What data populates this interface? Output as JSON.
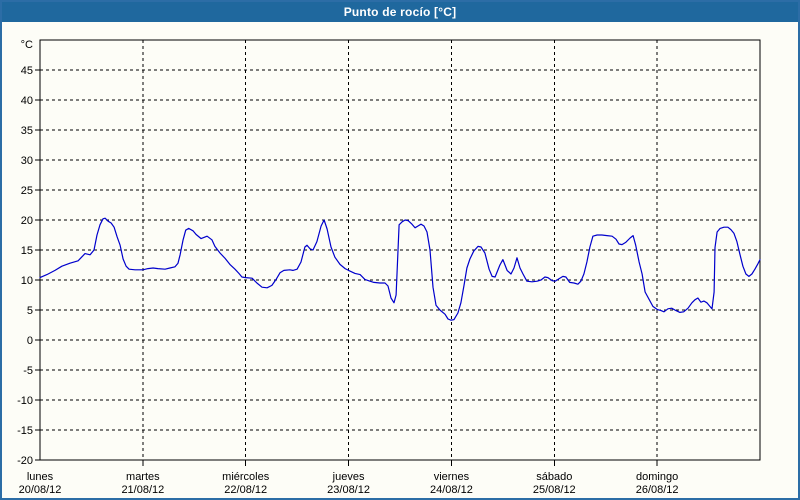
{
  "window": {
    "title": "Punto de rocío [°C]"
  },
  "colors": {
    "title_bar_bg": "#1f689e",
    "title_text": "#ffffff",
    "outer_border": "#2c6da6",
    "background": "#fdfdf7",
    "grid": "#000000",
    "line": "#0000cc"
  },
  "chart_data": {
    "type": "line",
    "title": "Punto de rocío [°C]",
    "ylabel": "°C",
    "ylim": [
      -20,
      50
    ],
    "yticks": [
      45,
      40,
      35,
      30,
      25,
      20,
      15,
      10,
      5,
      0,
      -5,
      -10,
      -15,
      -20
    ],
    "grid": true,
    "legend": "none",
    "xlim_hours": [
      0,
      168
    ],
    "hours_per_day": 24,
    "x_categories": [
      {
        "name": "lunes",
        "date": "20/08/12"
      },
      {
        "name": "martes",
        "date": "21/08/12"
      },
      {
        "name": "miércoles",
        "date": "22/08/12"
      },
      {
        "name": "jueves",
        "date": "23/08/12"
      },
      {
        "name": "viernes",
        "date": "24/08/12"
      },
      {
        "name": "sábado",
        "date": "25/08/12"
      },
      {
        "name": "domingo",
        "date": "26/08/12"
      }
    ],
    "series": [
      {
        "name": "Punto de rocío",
        "unit": "°C",
        "color": "#0000cc",
        "points_hours_values": [
          [
            0,
            10.4
          ],
          [
            1.6,
            10.9
          ],
          [
            3.5,
            11.6
          ],
          [
            5.1,
            12.3
          ],
          [
            7,
            12.8
          ],
          [
            8.9,
            13.2
          ],
          [
            10.5,
            14.4
          ],
          [
            11.7,
            14.2
          ],
          [
            12.6,
            15
          ],
          [
            13.3,
            17.5
          ],
          [
            14,
            19.2
          ],
          [
            14.7,
            20.2
          ],
          [
            15.2,
            20.3
          ],
          [
            15.9,
            19.8
          ],
          [
            16.6,
            19.5
          ],
          [
            17.3,
            18.8
          ],
          [
            18,
            17.2
          ],
          [
            18.7,
            15.8
          ],
          [
            19.4,
            13.5
          ],
          [
            20.1,
            12.3
          ],
          [
            20.8,
            11.8
          ],
          [
            22.2,
            11.7
          ],
          [
            24,
            11.7
          ],
          [
            25.2,
            11.9
          ],
          [
            26.4,
            12
          ],
          [
            27.5,
            11.9
          ],
          [
            29.2,
            11.8
          ],
          [
            30.3,
            12
          ],
          [
            31.5,
            12.2
          ],
          [
            32.2,
            12.8
          ],
          [
            32.7,
            14.2
          ],
          [
            33.4,
            16.7
          ],
          [
            34,
            18.3
          ],
          [
            34.7,
            18.6
          ],
          [
            35.7,
            18.2
          ],
          [
            36.4,
            17.6
          ],
          [
            37.6,
            16.9
          ],
          [
            39,
            17.3
          ],
          [
            40.1,
            16.7
          ],
          [
            40.8,
            15.6
          ],
          [
            42,
            14.5
          ],
          [
            43.2,
            13.6
          ],
          [
            44.3,
            12.6
          ],
          [
            45.5,
            11.8
          ],
          [
            46.4,
            11.1
          ],
          [
            47.1,
            10.5
          ],
          [
            48,
            10.4
          ],
          [
            49.5,
            10.3
          ],
          [
            50.6,
            9.5
          ],
          [
            51.8,
            8.8
          ],
          [
            53,
            8.7
          ],
          [
            54.1,
            9.1
          ],
          [
            55.1,
            10.1
          ],
          [
            56,
            11.2
          ],
          [
            56.9,
            11.6
          ],
          [
            58.3,
            11.7
          ],
          [
            59,
            11.6
          ],
          [
            60,
            11.8
          ],
          [
            60.9,
            13
          ],
          [
            61.8,
            15.5
          ],
          [
            62.3,
            15.8
          ],
          [
            63,
            15.2
          ],
          [
            63.7,
            15
          ],
          [
            64.6,
            16.4
          ],
          [
            65.6,
            19
          ],
          [
            66.3,
            20
          ],
          [
            67,
            18.5
          ],
          [
            67.9,
            15.5
          ],
          [
            68.8,
            13.8
          ],
          [
            70,
            12.6
          ],
          [
            71.2,
            11.9
          ],
          [
            72,
            11.6
          ],
          [
            73.5,
            11.1
          ],
          [
            74.7,
            10.9
          ],
          [
            75.8,
            10.1
          ],
          [
            77,
            9.8
          ],
          [
            77.9,
            9.6
          ],
          [
            79.3,
            9.5
          ],
          [
            80.5,
            9.5
          ],
          [
            81.2,
            9
          ],
          [
            81.9,
            7
          ],
          [
            82.6,
            6.2
          ],
          [
            83.1,
            7.5
          ],
          [
            83.8,
            19.2
          ],
          [
            84.5,
            19.7
          ],
          [
            85.2,
            20
          ],
          [
            85.9,
            19.9
          ],
          [
            86.8,
            19.3
          ],
          [
            87.5,
            18.7
          ],
          [
            88.2,
            19
          ],
          [
            88.9,
            19.3
          ],
          [
            89.6,
            19
          ],
          [
            90.3,
            18
          ],
          [
            91,
            15
          ],
          [
            91.7,
            8.8
          ],
          [
            92.4,
            5.8
          ],
          [
            93.3,
            5
          ],
          [
            94.5,
            4.3
          ],
          [
            95.2,
            3.5
          ],
          [
            95.9,
            3.3
          ],
          [
            96.6,
            3.4
          ],
          [
            97.5,
            4.5
          ],
          [
            98.2,
            6.2
          ],
          [
            98.9,
            9
          ],
          [
            99.6,
            12
          ],
          [
            100.3,
            13.5
          ],
          [
            101.2,
            14.8
          ],
          [
            102.2,
            15.6
          ],
          [
            102.9,
            15.5
          ],
          [
            103.8,
            14.5
          ],
          [
            104.8,
            11.8
          ],
          [
            105.5,
            10.6
          ],
          [
            106.2,
            10.5
          ],
          [
            107.3,
            12.5
          ],
          [
            108,
            13.4
          ],
          [
            109,
            11.6
          ],
          [
            109.9,
            11
          ],
          [
            110.6,
            12
          ],
          [
            111.3,
            13.7
          ],
          [
            112,
            12
          ],
          [
            112.7,
            11
          ],
          [
            113.6,
            9.8
          ],
          [
            114.8,
            9.7
          ],
          [
            116,
            9.8
          ],
          [
            116.9,
            10
          ],
          [
            117.8,
            10.5
          ],
          [
            118.5,
            10.4
          ],
          [
            119.5,
            9.9
          ],
          [
            120.2,
            9.8
          ],
          [
            121.1,
            10.2
          ],
          [
            122,
            10.6
          ],
          [
            122.7,
            10.5
          ],
          [
            123.6,
            9.6
          ],
          [
            124.6,
            9.5
          ],
          [
            125.5,
            9.3
          ],
          [
            126.2,
            9.8
          ],
          [
            126.9,
            11
          ],
          [
            127.6,
            13
          ],
          [
            128.3,
            15.5
          ],
          [
            129,
            17.3
          ],
          [
            130,
            17.5
          ],
          [
            131.1,
            17.5
          ],
          [
            132.3,
            17.4
          ],
          [
            133.5,
            17.3
          ],
          [
            134.4,
            16.8
          ],
          [
            135.1,
            16
          ],
          [
            135.8,
            15.9
          ],
          [
            136.7,
            16.3
          ],
          [
            137.7,
            17
          ],
          [
            138.4,
            17.4
          ],
          [
            139,
            15.8
          ],
          [
            139.8,
            13
          ],
          [
            140.5,
            11
          ],
          [
            141.2,
            8
          ],
          [
            142.1,
            6.8
          ],
          [
            143,
            5.6
          ],
          [
            144,
            5.1
          ],
          [
            144.9,
            4.9
          ],
          [
            145.6,
            4.7
          ],
          [
            146.5,
            5.2
          ],
          [
            147.4,
            5.3
          ],
          [
            148.4,
            4.9
          ],
          [
            149.3,
            4.6
          ],
          [
            150.2,
            4.7
          ],
          [
            151.2,
            5.3
          ],
          [
            152.1,
            6.2
          ],
          [
            152.8,
            6.7
          ],
          [
            153.5,
            7
          ],
          [
            154.2,
            6.3
          ],
          [
            154.9,
            6.5
          ],
          [
            155.6,
            6.2
          ],
          [
            156.3,
            5.6
          ],
          [
            156.8,
            5.2
          ],
          [
            157.3,
            8
          ],
          [
            157.5,
            15.4
          ],
          [
            158,
            18
          ],
          [
            158.7,
            18.6
          ],
          [
            159.6,
            18.8
          ],
          [
            160.5,
            18.8
          ],
          [
            161.2,
            18.4
          ],
          [
            161.9,
            17.8
          ],
          [
            162.6,
            16.4
          ],
          [
            163.3,
            14.3
          ],
          [
            164,
            12.3
          ],
          [
            164.7,
            11
          ],
          [
            165.4,
            10.6
          ],
          [
            166.1,
            11
          ],
          [
            166.8,
            11.8
          ],
          [
            167.5,
            12.7
          ],
          [
            168,
            13.4
          ]
        ]
      }
    ]
  }
}
